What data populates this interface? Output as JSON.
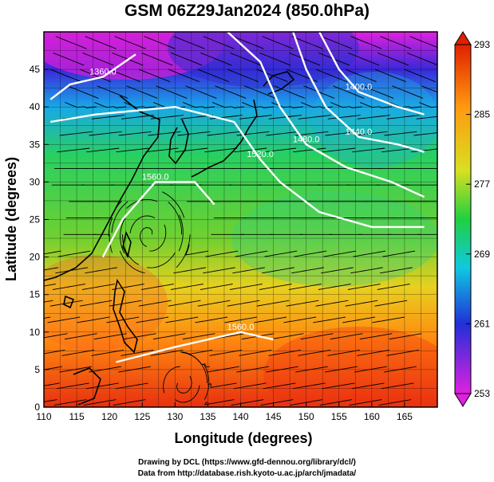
{
  "title": "GSM 06Z29Jan2024 (850.0hPa)",
  "xlabel": "Longitude (degrees)",
  "ylabel": "Latitude  (degrees)",
  "x_ticks": [
    "110",
    "115",
    "120",
    "125",
    "130",
    "135",
    "140",
    "145",
    "150",
    "155",
    "160",
    "165"
  ],
  "y_ticks": [
    "0",
    "5",
    "10",
    "15",
    "20",
    "25",
    "30",
    "35",
    "40",
    "45"
  ],
  "colorbar": {
    "labels": [
      "293",
      "285",
      "277",
      "269",
      "261",
      "253"
    ]
  },
  "contour_labels": [
    "1560.0",
    "1520.0",
    "1480.0",
    "1440.0",
    "1400.0",
    "1360.0",
    "1560.0"
  ],
  "credits": [
    "Drawing by DCL (https://www.gfd-dennou.org/library/dcl/)",
    "Data from http://database.rish.kyoto-u.ac.jp/arch/jmadata/"
  ],
  "colors": {
    "cold": "#e020e0",
    "blue": "#1f3fd8",
    "cyan": "#10c8e0",
    "green": "#30d040",
    "yellow": "#e8d820",
    "orange": "#ff8810",
    "warm": "#e83010"
  },
  "chart_data": {
    "type": "map",
    "title": "GSM 06Z29Jan2024 (850.0hPa)",
    "xlabel": "Longitude (degrees)",
    "ylabel": "Latitude  (degrees)",
    "xlim": [
      110,
      170
    ],
    "ylim": [
      0,
      50
    ],
    "colorbar_range": [
      253,
      293
    ],
    "colorbar_ticks": [
      293,
      285,
      277,
      269,
      261,
      253
    ],
    "contours": [
      {
        "label": "1560.0",
        "points": [
          [
            121,
            6
          ],
          [
            130,
            8
          ],
          [
            140,
            10
          ],
          [
            145,
            9
          ]
        ]
      },
      {
        "label": "1560.0",
        "points": [
          [
            119,
            20
          ],
          [
            122,
            25
          ],
          [
            127,
            30
          ],
          [
            133,
            30
          ],
          [
            136,
            27
          ]
        ]
      },
      {
        "label": "1520.0",
        "points": [
          [
            111,
            38
          ],
          [
            118,
            39
          ],
          [
            130,
            40
          ],
          [
            139,
            38
          ],
          [
            143,
            33
          ],
          [
            146,
            30
          ],
          [
            152,
            26
          ],
          [
            160,
            24
          ],
          [
            168,
            24
          ]
        ]
      },
      {
        "label": "1480.0",
        "points": [
          [
            138,
            50
          ],
          [
            143,
            46
          ],
          [
            146,
            40
          ],
          [
            150,
            35
          ],
          [
            156,
            32
          ],
          [
            163,
            30
          ],
          [
            168,
            28
          ]
        ]
      },
      {
        "label": "1440.0",
        "points": [
          [
            148,
            50
          ],
          [
            150,
            45
          ],
          [
            153,
            40
          ],
          [
            158,
            36
          ],
          [
            164,
            35
          ],
          [
            168,
            34
          ]
        ]
      },
      {
        "label": "1400.0",
        "points": [
          [
            152,
            50
          ],
          [
            155,
            45
          ],
          [
            158,
            42
          ],
          [
            164,
            40
          ],
          [
            168,
            39
          ]
        ]
      },
      {
        "label": "1360.0",
        "points": [
          [
            111,
            41
          ],
          [
            114,
            43
          ],
          [
            119,
            44
          ],
          [
            124,
            47
          ]
        ]
      }
    ]
  }
}
